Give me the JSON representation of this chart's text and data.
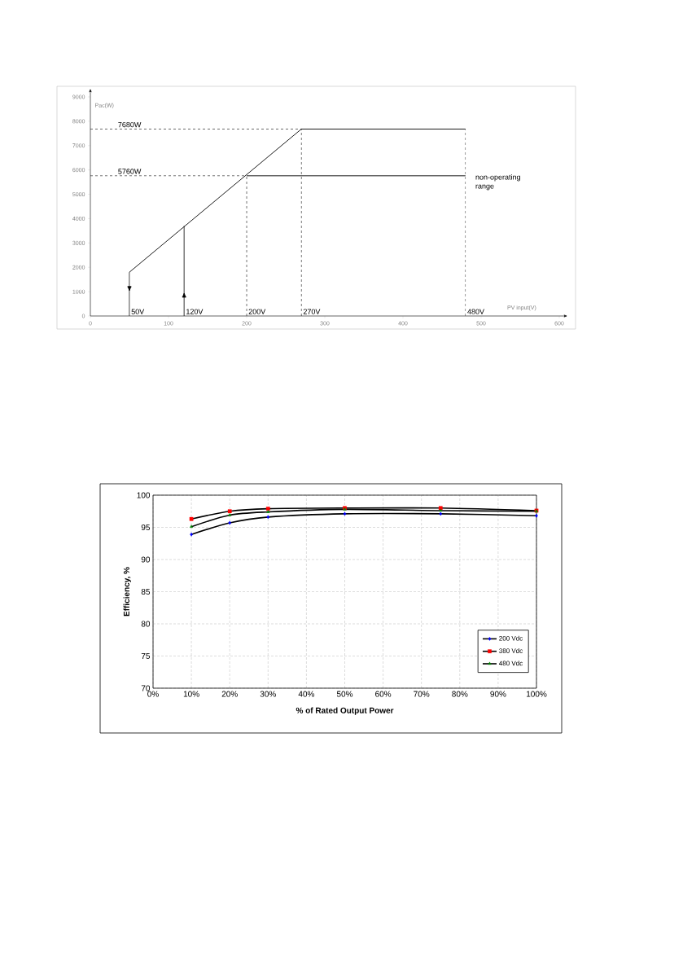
{
  "chart_data": [
    {
      "type": "line",
      "xlabel": "PV input(V)",
      "ylabel": "Pac(W)",
      "xlim": [
        0,
        600
      ],
      "ylim": [
        0,
        9000
      ],
      "xticks": [
        0,
        100,
        200,
        300,
        400,
        500,
        600
      ],
      "yticks": [
        0,
        1000,
        2000,
        3000,
        4000,
        5000,
        6000,
        7000,
        8000,
        9000
      ],
      "series": [
        {
          "color": "#000000",
          "x": [
            50,
            270,
            480
          ],
          "values": [
            1800,
            7680,
            7680
          ]
        },
        {
          "color": "#000000",
          "x": [
            200,
            480
          ],
          "values": [
            5760,
            5760
          ]
        },
        {
          "color": "#000000",
          "x": [
            50,
            50
          ],
          "values": [
            1800,
            0
          ]
        },
        {
          "color": "#000000",
          "x": [
            120,
            120
          ],
          "values": [
            0,
            3700
          ]
        },
        {
          "color": "#000000",
          "line_style": "dashed",
          "x": [
            0,
            270
          ],
          "values": [
            7680,
            7680
          ]
        },
        {
          "color": "#000000",
          "line_style": "dashed",
          "x": [
            0,
            200
          ],
          "values": [
            5760,
            5760
          ]
        },
        {
          "color": "#000000",
          "line_style": "dashed",
          "x": [
            200,
            200
          ],
          "values": [
            0,
            5760
          ]
        },
        {
          "color": "#000000",
          "line_style": "dashed",
          "x": [
            270,
            270
          ],
          "values": [
            0,
            7680
          ]
        },
        {
          "color": "#000000",
          "line_style": "dashed",
          "x": [
            480,
            480
          ],
          "values": [
            0,
            7680
          ]
        }
      ],
      "annotations": [
        {
          "text": "7680W",
          "x": 33,
          "y": 7680
        },
        {
          "text": "5760W",
          "x": 33,
          "y": 5760
        },
        {
          "text": "50V",
          "x": 50,
          "y": 0
        },
        {
          "text": "120V",
          "x": 120,
          "y": 0
        },
        {
          "text": "200V",
          "x": 200,
          "y": 0
        },
        {
          "text": "270V",
          "x": 270,
          "y": 0
        },
        {
          "text": "480V",
          "x": 480,
          "y": 0
        },
        "non-operating range"
      ]
    },
    {
      "type": "line",
      "xlabel": "% of Rated Output Power",
      "ylabel": "Efficiency, %",
      "x": [
        10,
        20,
        30,
        50,
        75,
        100
      ],
      "xlim": [
        0,
        100
      ],
      "xticks": [
        {
          "value": 0,
          "label": "0%"
        },
        {
          "value": 10,
          "label": "10%"
        },
        {
          "value": 20,
          "label": "20%"
        },
        {
          "value": 30,
          "label": "30%"
        },
        {
          "value": 40,
          "label": "40%"
        },
        {
          "value": 50,
          "label": "50%"
        },
        {
          "value": 60,
          "label": "60%"
        },
        {
          "value": 70,
          "label": "70%"
        },
        {
          "value": 80,
          "label": "80%"
        },
        {
          "value": 90,
          "label": "90%"
        },
        {
          "value": 100,
          "label": "100%"
        }
      ],
      "ylim": [
        70,
        100
      ],
      "yticks": [
        70,
        75,
        80,
        85,
        90,
        95,
        100
      ],
      "grid": true,
      "legend": "bottom right",
      "series": [
        {
          "name": "200 Vdc",
          "color": "#0000ff",
          "marker": "diamond",
          "values": [
            93.9,
            95.7,
            96.6,
            97.1,
            97.1,
            96.8
          ]
        },
        {
          "name": "380 Vdc",
          "color": "#ff0000",
          "marker": "square",
          "values": [
            96.3,
            97.5,
            97.9,
            98.0,
            98.0,
            97.6
          ]
        },
        {
          "name": "480 Vdc",
          "color": "#008000",
          "marker": "triangle",
          "values": [
            95.1,
            96.9,
            97.4,
            97.8,
            97.6,
            97.5
          ]
        }
      ]
    }
  ]
}
